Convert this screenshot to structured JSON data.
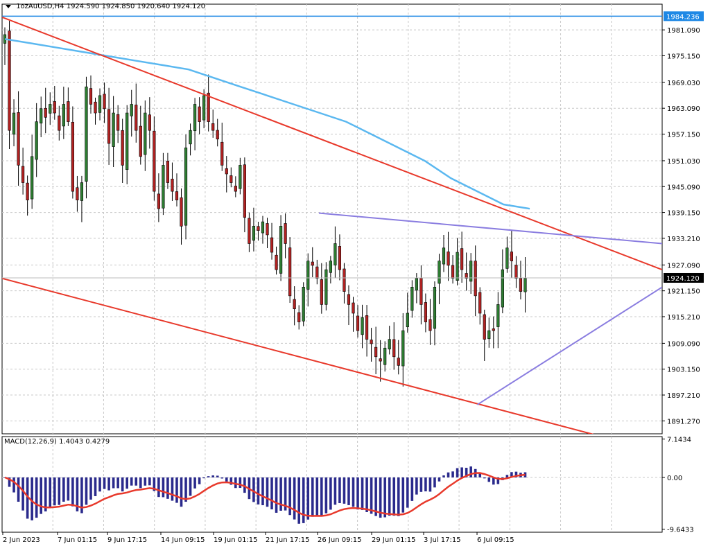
{
  "header": {
    "symbol_line": "1ozAuUSD,H4  1924.590  1924.850  1920.640  1924.120",
    "macd_line": "MACD(12,26,9) 1.4043 0.4279"
  },
  "colors": {
    "bull": "#2e7d32",
    "bear": "#b22222",
    "ma": "#5bb8f0",
    "channel": "#e8392b",
    "triangle": "#8a7de0",
    "macd_hist": "#2a2a8c",
    "macd_signal": "#e8392b",
    "bg": "#ffffff",
    "grid": "#c8c8c8"
  },
  "chart_data": [
    {
      "type": "candlestick",
      "title": "1ozAuUSD,H4",
      "open": 1924.59,
      "high": 1924.85,
      "low": 1920.64,
      "close": 1924.12,
      "ylim": [
        1888.3,
        1987.0
      ],
      "y_ticks": [
        1981.09,
        1975.15,
        1969.03,
        1963.09,
        1957.15,
        1951.03,
        1945.09,
        1939.15,
        1933.21,
        1927.09,
        1921.15,
        1915.21,
        1909.09,
        1903.15,
        1897.21,
        1891.27
      ],
      "x_labels": [
        "2 Jun 2023",
        "7 Jun 01:15",
        "9 Jun 17:15",
        "14 Jun 09:15",
        "19 Jun 01:15",
        "21 Jun 17:15",
        "26 Jun 09:15",
        "29 Jun 01:15",
        "3 Jul 17:15",
        "6 Jul 09:15"
      ],
      "current_price": "1924.120",
      "top_line_price": "1984.236",
      "closes": [
        1980,
        1958,
        1962,
        1950,
        1946,
        1942,
        1952,
        1960,
        1963,
        1961,
        1964,
        1962,
        1958,
        1964,
        1960,
        1944,
        1942,
        1946,
        1968,
        1964,
        1962,
        1966,
        1963,
        1955,
        1962,
        1958,
        1950,
        1962,
        1964,
        1958,
        1952,
        1962,
        1958,
        1944,
        1940,
        1950,
        1946,
        1944,
        1942,
        1936,
        1954,
        1958,
        1964,
        1960,
        1966,
        1960,
        1958,
        1956,
        1950,
        1948,
        1946,
        1944,
        1950,
        1938,
        1932,
        1936,
        1935,
        1937,
        1934,
        1930,
        1926,
        1936,
        1932,
        1920,
        1917,
        1914,
        1922,
        1928,
        1927,
        1924,
        1918,
        1926,
        1928,
        1932,
        1926,
        1921,
        1918,
        1916,
        1912,
        1915,
        1910,
        1909,
        1906,
        1905,
        1908,
        1910,
        1906,
        1904,
        1912,
        1916,
        1922,
        1924,
        1918,
        1914,
        1912,
        1922,
        1928,
        1931,
        1927,
        1924,
        1930,
        1926,
        1924,
        1928,
        1920,
        1916,
        1910,
        1912,
        1912,
        1918,
        1926,
        1931,
        1928,
        1924,
        1921,
        1924
      ],
      "moving_average": [
        1979,
        1978,
        1977,
        1976,
        1975,
        1974,
        1973,
        1972,
        1970,
        1968,
        1966,
        1964,
        1962,
        1960,
        1957,
        1954,
        1951,
        1947,
        1944,
        1941,
        1940
      ],
      "channel_upper": [
        [
          0,
          1984
        ],
        [
          1,
          1926
        ]
      ],
      "channel_lower": [
        [
          0,
          1924
        ],
        [
          1,
          1884
        ]
      ],
      "triangle_upper": [
        [
          0.48,
          1939
        ],
        [
          1,
          1932
        ]
      ],
      "triangle_lower": [
        [
          0.72,
          1895
        ],
        [
          1,
          1922
        ]
      ]
    },
    {
      "type": "bar",
      "title": "MACD(12,26,9)",
      "macd": 1.4043,
      "signal": 0.4279,
      "y_ticks": [
        "7.1434",
        "0.00",
        "-9.6433"
      ],
      "ylim": [
        -10.2,
        7.6
      ]
    }
  ]
}
